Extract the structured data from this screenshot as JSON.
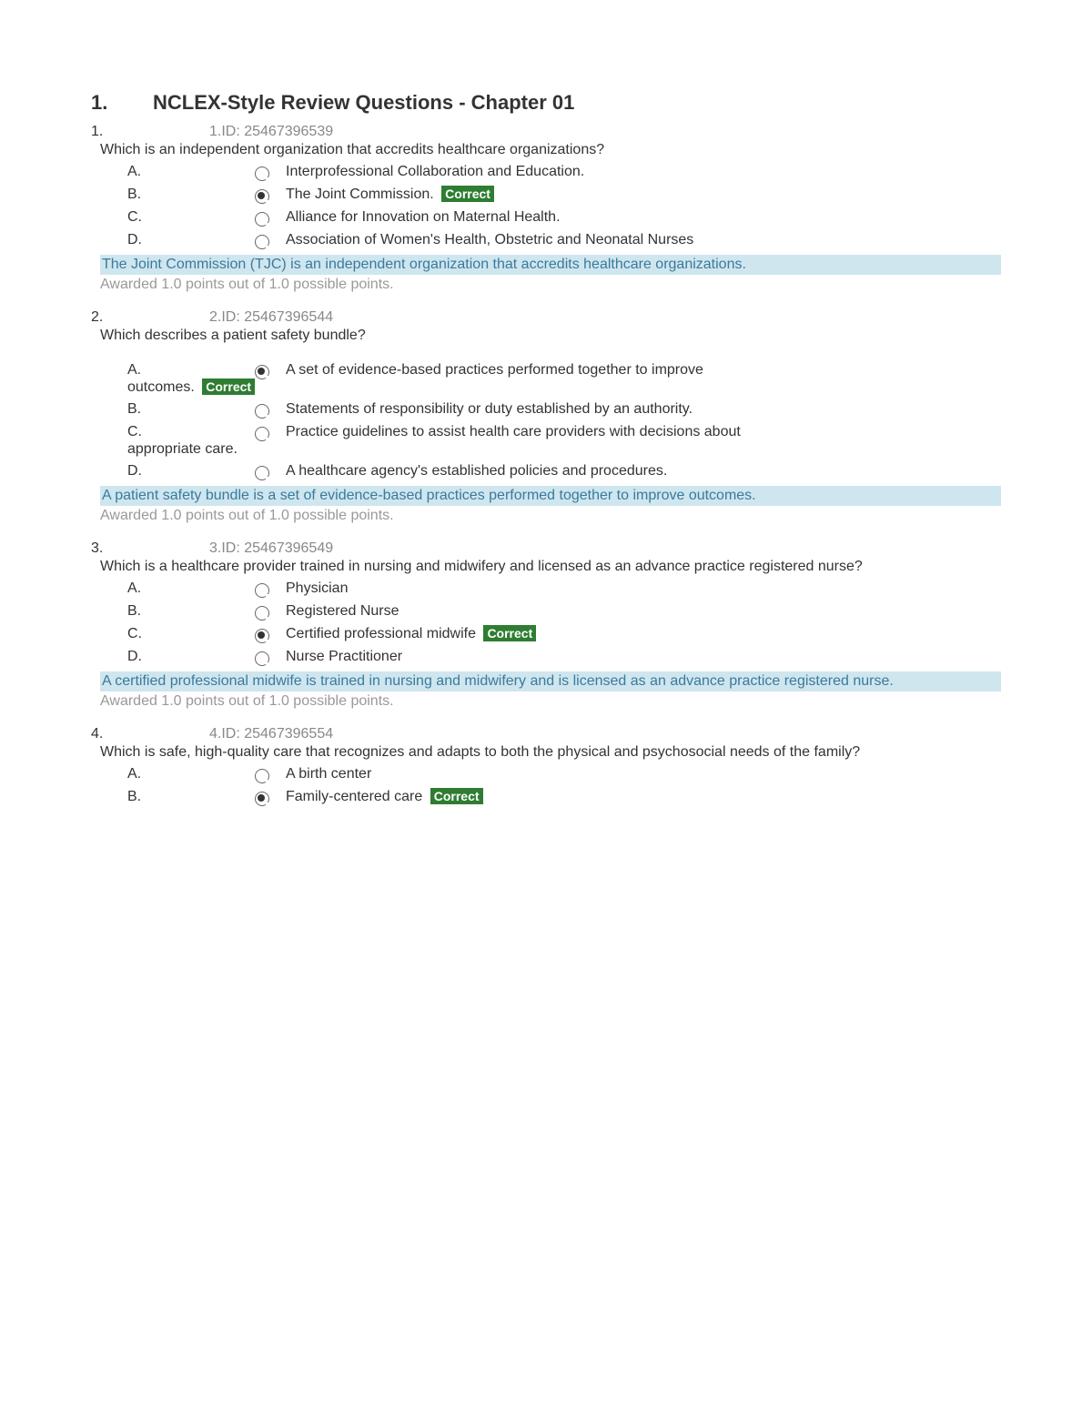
{
  "title_number": "1.",
  "title_text": "NCLEX-Style Review Questions - Chapter 01",
  "colors": {
    "text": "#333333",
    "muted": "#888888",
    "points": "#999999",
    "explanation_bg": "#cfe6ef",
    "explanation_text": "#3a7a9c",
    "correct_bg": "#2e7d32",
    "correct_text": "#ffffff",
    "background": "#ffffff"
  },
  "correct_label": "Correct",
  "points_text": "Awarded 1.0 points out of 1.0 possible points.",
  "questions": [
    {
      "num": "1.",
      "id_label": "1.ID: 25467396539",
      "text": "Which is an independent organization that accredits healthcare organizations?",
      "options": [
        {
          "letter": "A.",
          "text": "Interprofessional Collaboration and Education.",
          "selected": false,
          "correct": false
        },
        {
          "letter": "B.",
          "text": "The Joint Commission.",
          "selected": true,
          "correct": true
        },
        {
          "letter": "C.",
          "text": "Alliance for Innovation on Maternal Health.",
          "selected": false,
          "correct": false
        },
        {
          "letter": "D.",
          "text": "Association of Women's Health, Obstetric and Neonatal Nurses",
          "selected": false,
          "correct": false
        }
      ],
      "explanation": "The Joint Commission (TJC) is an independent organization that accredits healthcare organizations."
    },
    {
      "num": "2.",
      "id_label": "2.ID: 25467396544",
      "text": "Which describes a patient safety bundle?",
      "options": [
        {
          "letter": "A.",
          "text": "A set of evidence-based practices performed together to improve",
          "continuation": "outcomes.",
          "selected": true,
          "correct": true
        },
        {
          "letter": "B.",
          "text": "Statements of responsibility or duty established by an authority.",
          "selected": false,
          "correct": false
        },
        {
          "letter": "C.",
          "text": "Practice guidelines to assist health care providers with decisions about",
          "continuation": "appropriate care.",
          "selected": false,
          "correct": false
        },
        {
          "letter": "D.",
          "text": "A healthcare agency's established policies and procedures.",
          "selected": false,
          "correct": false
        }
      ],
      "explanation": "A patient safety bundle is a set of evidence-based practices performed together to improve outcomes."
    },
    {
      "num": "3.",
      "id_label": "3.ID: 25467396549",
      "text": "Which is a healthcare provider trained in nursing and midwifery and licensed as an advance practice registered nurse?",
      "options": [
        {
          "letter": "A.",
          "text": "Physician",
          "selected": false,
          "correct": false
        },
        {
          "letter": "B.",
          "text": "Registered Nurse",
          "selected": false,
          "correct": false
        },
        {
          "letter": "C.",
          "text": "Certified professional midwife",
          "selected": true,
          "correct": true
        },
        {
          "letter": "D.",
          "text": "Nurse Practitioner",
          "selected": false,
          "correct": false
        }
      ],
      "explanation": "A certified professional midwife is trained in nursing and midwifery and is licensed as an advance practice registered nurse."
    },
    {
      "num": "4.",
      "id_label": "4.ID: 25467396554",
      "text": "Which is safe, high-quality care that recognizes and adapts to both the physical and psychosocial needs of the family?",
      "options": [
        {
          "letter": "A.",
          "text": "A birth center",
          "selected": false,
          "correct": false
        },
        {
          "letter": "B.",
          "text": "Family-centered care",
          "selected": true,
          "correct": true
        }
      ],
      "explanation": null,
      "show_points": false
    }
  ]
}
